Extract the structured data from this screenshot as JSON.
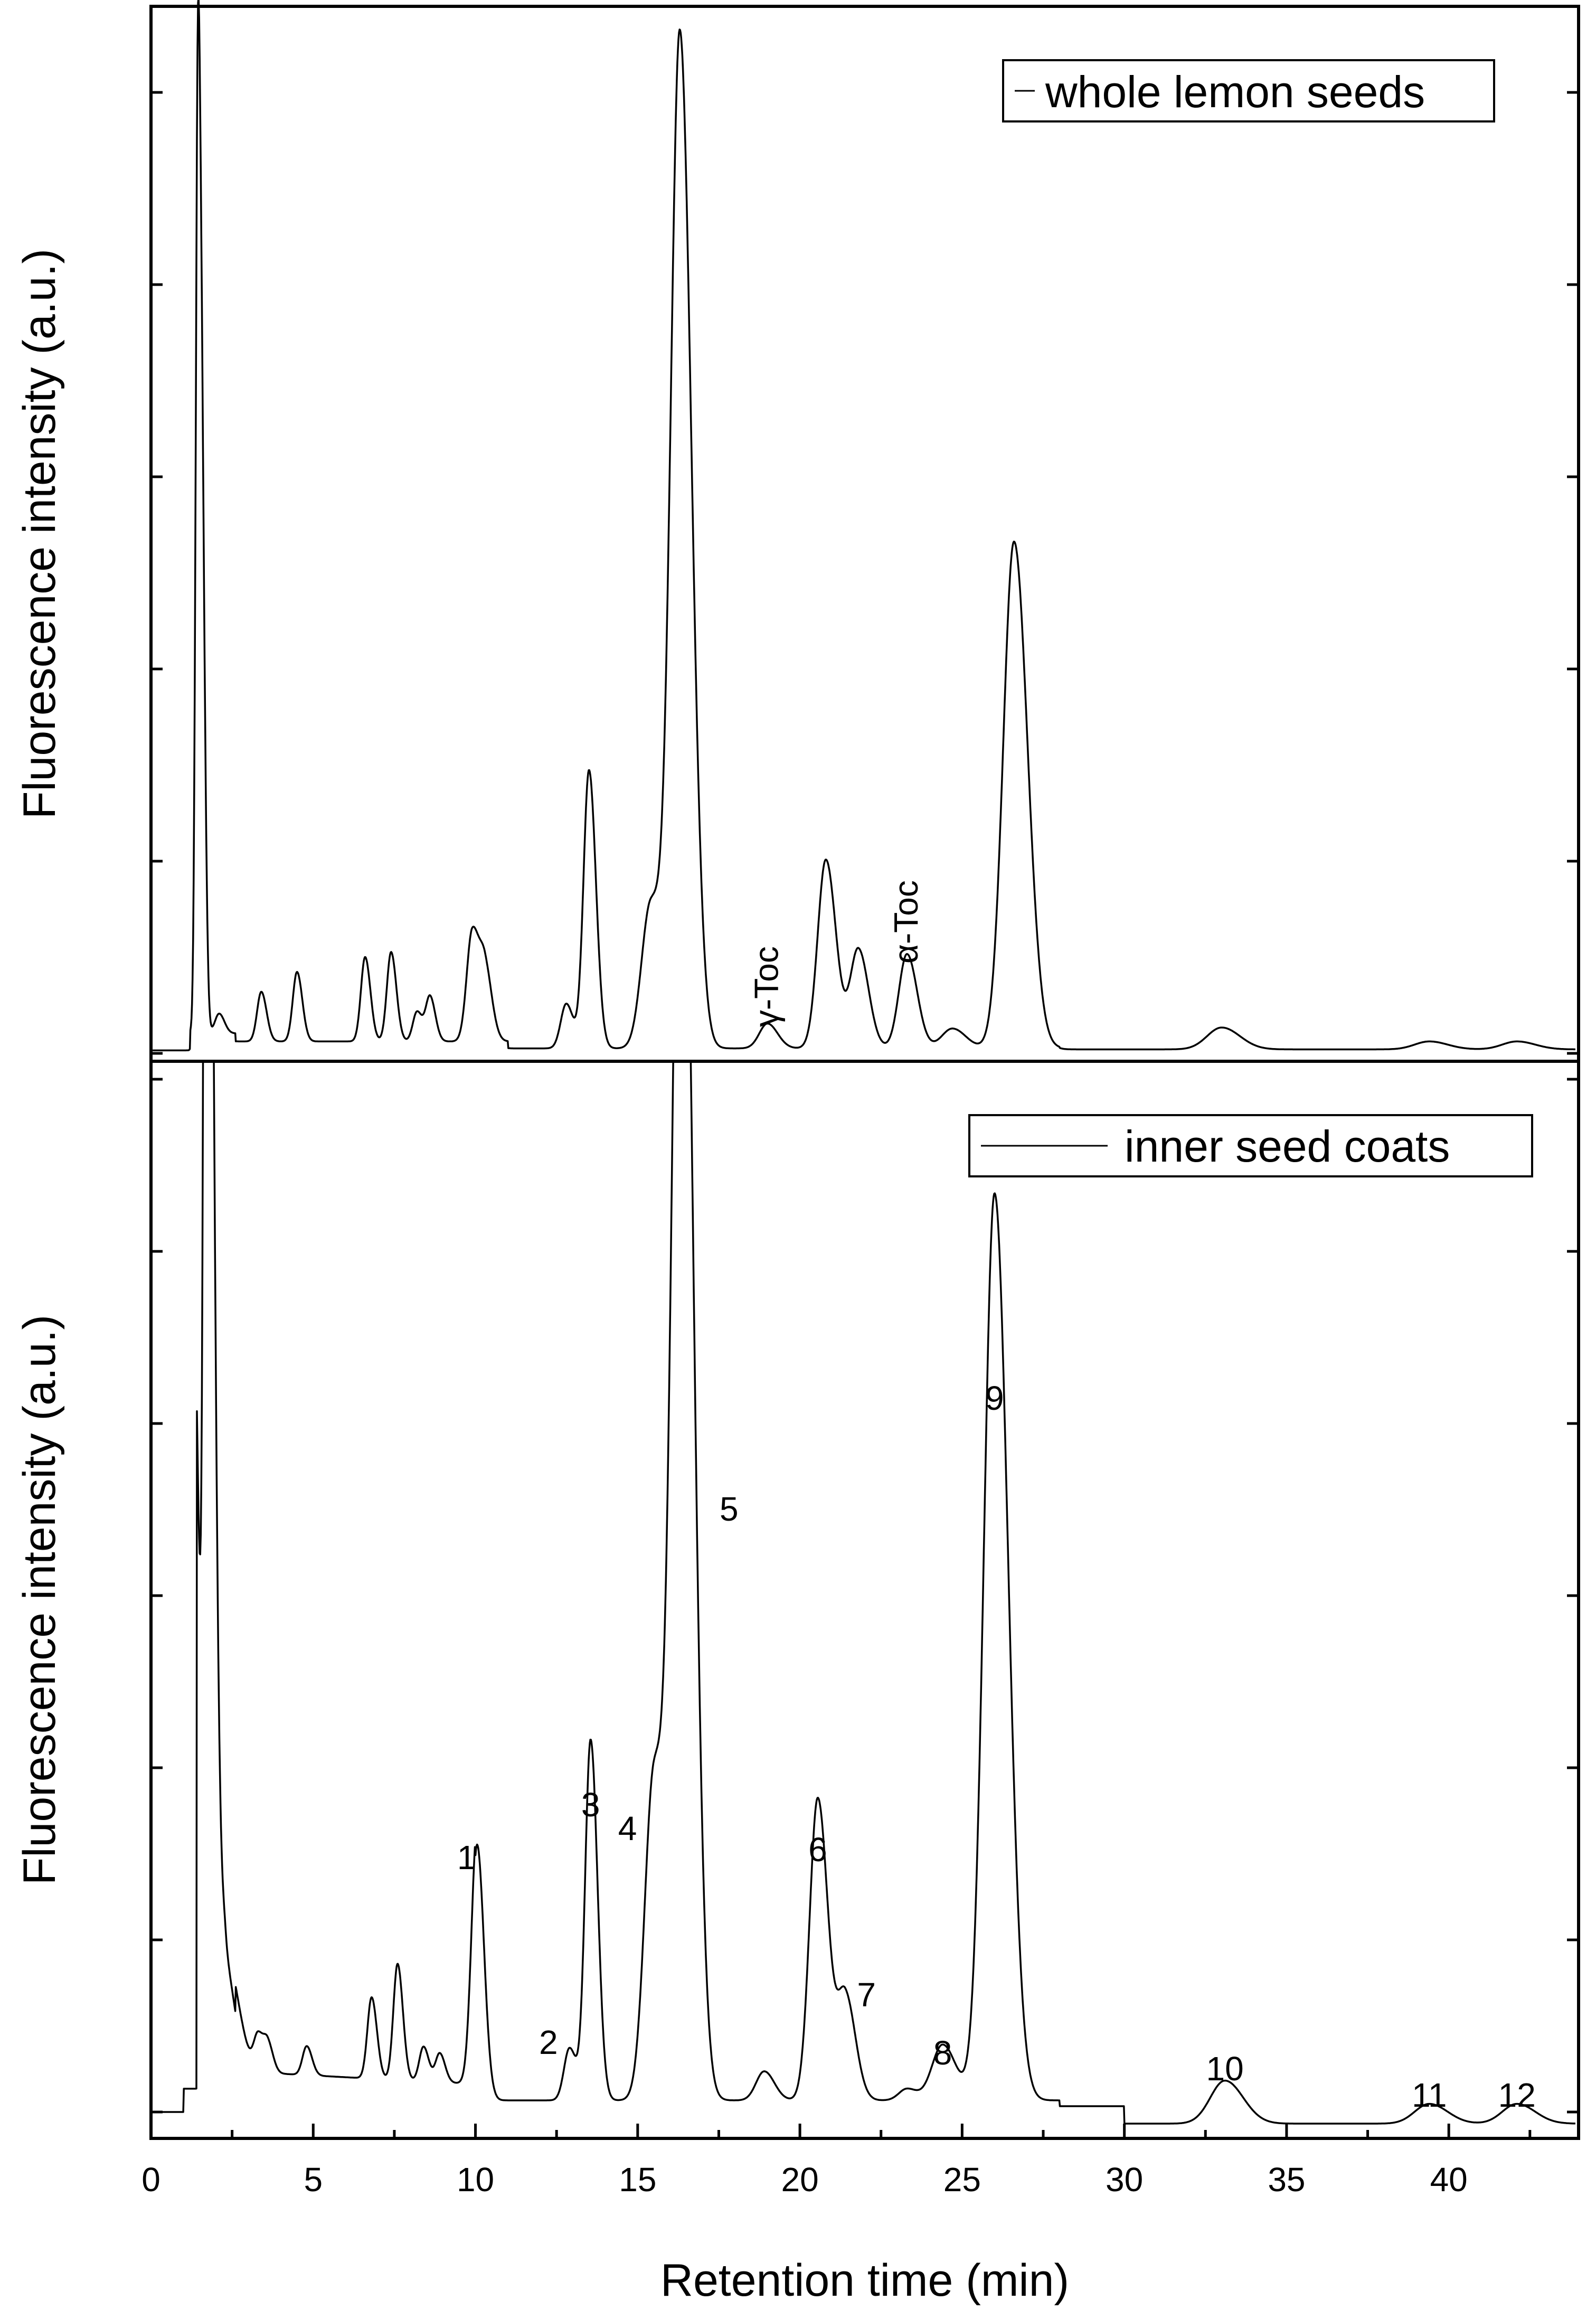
{
  "chart_data": [
    {
      "type": "line",
      "panel": "top",
      "legend": "whole lemon seeds",
      "legend_position": "top-right",
      "ylabel": "Fluorescence intensity (a.u.)",
      "xlim": [
        0,
        44
      ],
      "ylim": [
        0,
        1.0
      ],
      "x_ticks": [
        0,
        5,
        10,
        15,
        20,
        25,
        30,
        35,
        40
      ],
      "peaks": [
        {
          "x": 1.45,
          "y": 1.0
        },
        {
          "x": 1.6,
          "y": 0.37
        },
        {
          "x": 2.1,
          "y": 0.02
        },
        {
          "x": 3.4,
          "y": 0.05
        },
        {
          "x": 4.5,
          "y": 0.07
        },
        {
          "x": 6.6,
          "y": 0.085
        },
        {
          "x": 7.4,
          "y": 0.09
        },
        {
          "x": 8.2,
          "y": 0.03
        },
        {
          "x": 8.6,
          "y": 0.045
        },
        {
          "x": 9.9,
          "y": 0.11
        },
        {
          "x": 10.3,
          "y": 0.07
        },
        {
          "x": 12.8,
          "y": 0.045
        },
        {
          "x": 13.5,
          "y": 0.28
        },
        {
          "x": 15.4,
          "y": 0.145
        },
        {
          "x": 16.3,
          "y": 1.02
        },
        {
          "x": 19.0,
          "y": 0.025
        },
        {
          "x": 20.8,
          "y": 0.19
        },
        {
          "x": 21.8,
          "y": 0.1
        },
        {
          "x": 23.3,
          "y": 0.095
        },
        {
          "x": 24.7,
          "y": 0.02
        },
        {
          "x": 26.6,
          "y": 0.51
        },
        {
          "x": 33.0,
          "y": 0.022
        },
        {
          "x": 39.4,
          "y": 0.008
        },
        {
          "x": 42.1,
          "y": 0.008
        }
      ],
      "annotations": [
        {
          "text": "γ-Toc",
          "x": 19.0
        },
        {
          "text": "α-Toc",
          "x": 23.3
        }
      ]
    },
    {
      "type": "line",
      "panel": "bottom",
      "legend": "inner seed coats",
      "legend_position": "top-right",
      "xlabel": "Retention time (min)",
      "ylabel": "Fluorescence intensity (a.u.)",
      "xlim": [
        0,
        44
      ],
      "ylim": [
        0,
        1.0
      ],
      "x_ticks": [
        0,
        5,
        10,
        15,
        20,
        25,
        30,
        35,
        40
      ],
      "peaks": [
        {
          "x": 1.7,
          "y": 1.5
        },
        {
          "x": 2.3,
          "y": 0.1
        },
        {
          "x": 3.3,
          "y": 0.03
        },
        {
          "x": 3.6,
          "y": 0.025
        },
        {
          "x": 4.8,
          "y": 0.025
        },
        {
          "x": 6.8,
          "y": 0.07
        },
        {
          "x": 7.6,
          "y": 0.1
        },
        {
          "x": 8.4,
          "y": 0.03
        },
        {
          "x": 8.9,
          "y": 0.025
        },
        {
          "x": 10.05,
          "y": 0.22
        },
        {
          "x": 12.9,
          "y": 0.045
        },
        {
          "x": 13.55,
          "y": 0.31
        },
        {
          "x": 15.5,
          "y": 0.28
        },
        {
          "x": 16.35,
          "y": 1.25
        },
        {
          "x": 18.9,
          "y": 0.025
        },
        {
          "x": 20.55,
          "y": 0.26
        },
        {
          "x": 21.4,
          "y": 0.09
        },
        {
          "x": 23.3,
          "y": 0.01
        },
        {
          "x": 24.4,
          "y": 0.048
        },
        {
          "x": 26.0,
          "y": 0.78
        },
        {
          "x": 33.1,
          "y": 0.037
        },
        {
          "x": 39.4,
          "y": 0.017
        },
        {
          "x": 42.1,
          "y": 0.017
        }
      ],
      "annotations": [
        {
          "text": "1",
          "x": 10.05
        },
        {
          "text": "2",
          "x": 12.9
        },
        {
          "text": "3",
          "x": 13.55
        },
        {
          "text": "4",
          "x": 15.5
        },
        {
          "text": "5",
          "x": 16.35
        },
        {
          "text": "6",
          "x": 20.55
        },
        {
          "text": "7",
          "x": 21.4
        },
        {
          "text": "8",
          "x": 24.4
        },
        {
          "text": "9",
          "x": 26.0
        },
        {
          "text": "10",
          "x": 33.1
        },
        {
          "text": "11",
          "x": 39.4
        },
        {
          "text": "12",
          "x": 42.1
        }
      ]
    }
  ]
}
